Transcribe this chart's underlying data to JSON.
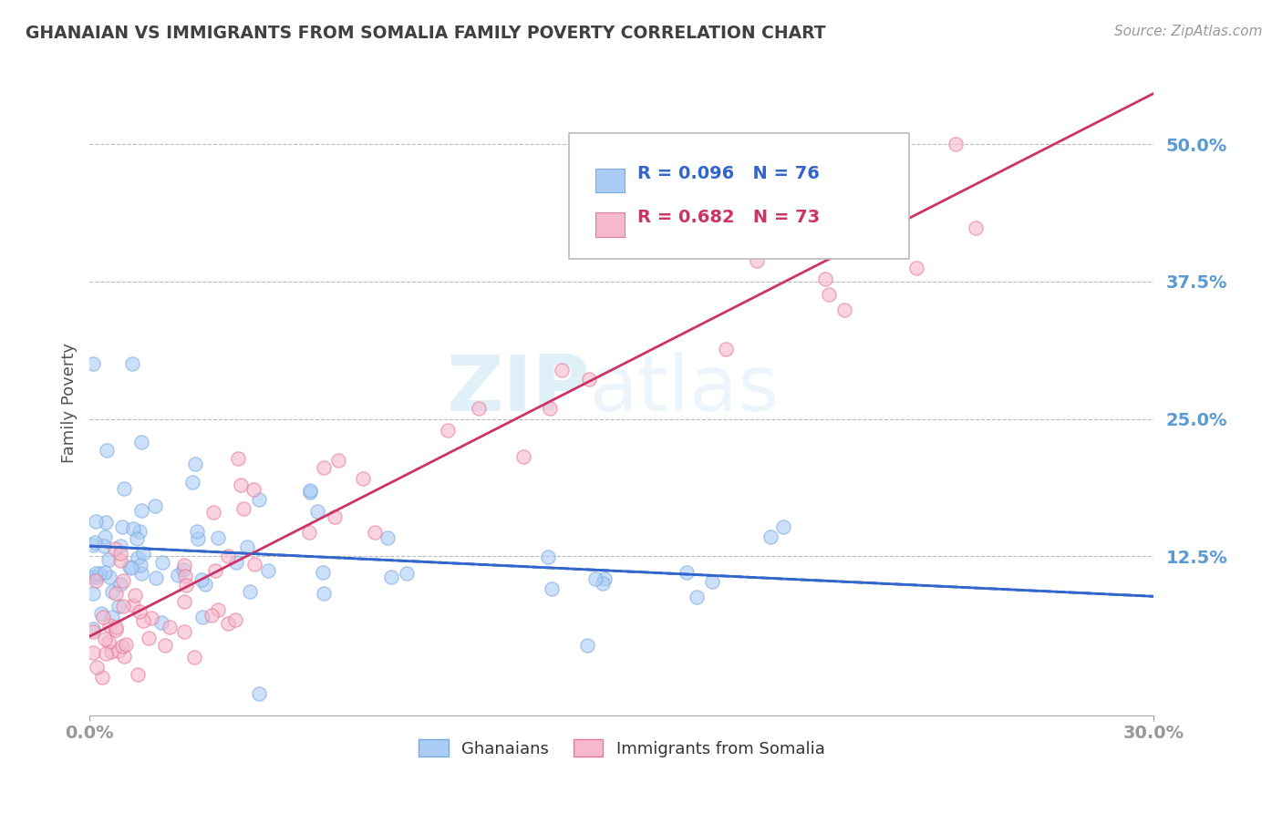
{
  "title": "GHANAIAN VS IMMIGRANTS FROM SOMALIA FAMILY POVERTY CORRELATION CHART",
  "source": "Source: ZipAtlas.com",
  "ylabel": "Family Poverty",
  "xlim": [
    0.0,
    0.3
  ],
  "ylim": [
    -0.02,
    0.55
  ],
  "xticks": [
    0.0,
    0.3
  ],
  "xtick_labels": [
    "0.0%",
    "30.0%"
  ],
  "yticks": [
    0.125,
    0.25,
    0.375,
    0.5
  ],
  "ytick_labels": [
    "12.5%",
    "25.0%",
    "37.5%",
    "50.0%"
  ],
  "group1_label": "Ghanaians",
  "group1_R": 0.096,
  "group1_N": 76,
  "group1_color": "#aaccf5",
  "group1_edge": "#7aaae0",
  "group2_label": "Immigrants from Somalia",
  "group2_R": 0.682,
  "group2_N": 73,
  "group2_color": "#f5b8cc",
  "group2_edge": "#e87898",
  "line1_color": "#3366cc",
  "line2_color": "#cc3366",
  "background_color": "#ffffff",
  "grid_color": "#bbbbbb",
  "title_color": "#404040",
  "tick_color": "#5b9bd5",
  "legend_R1_color": "#3366cc",
  "legend_R2_color": "#cc3366",
  "legend_N1_color": "#3366cc",
  "legend_N2_color": "#cc3366"
}
